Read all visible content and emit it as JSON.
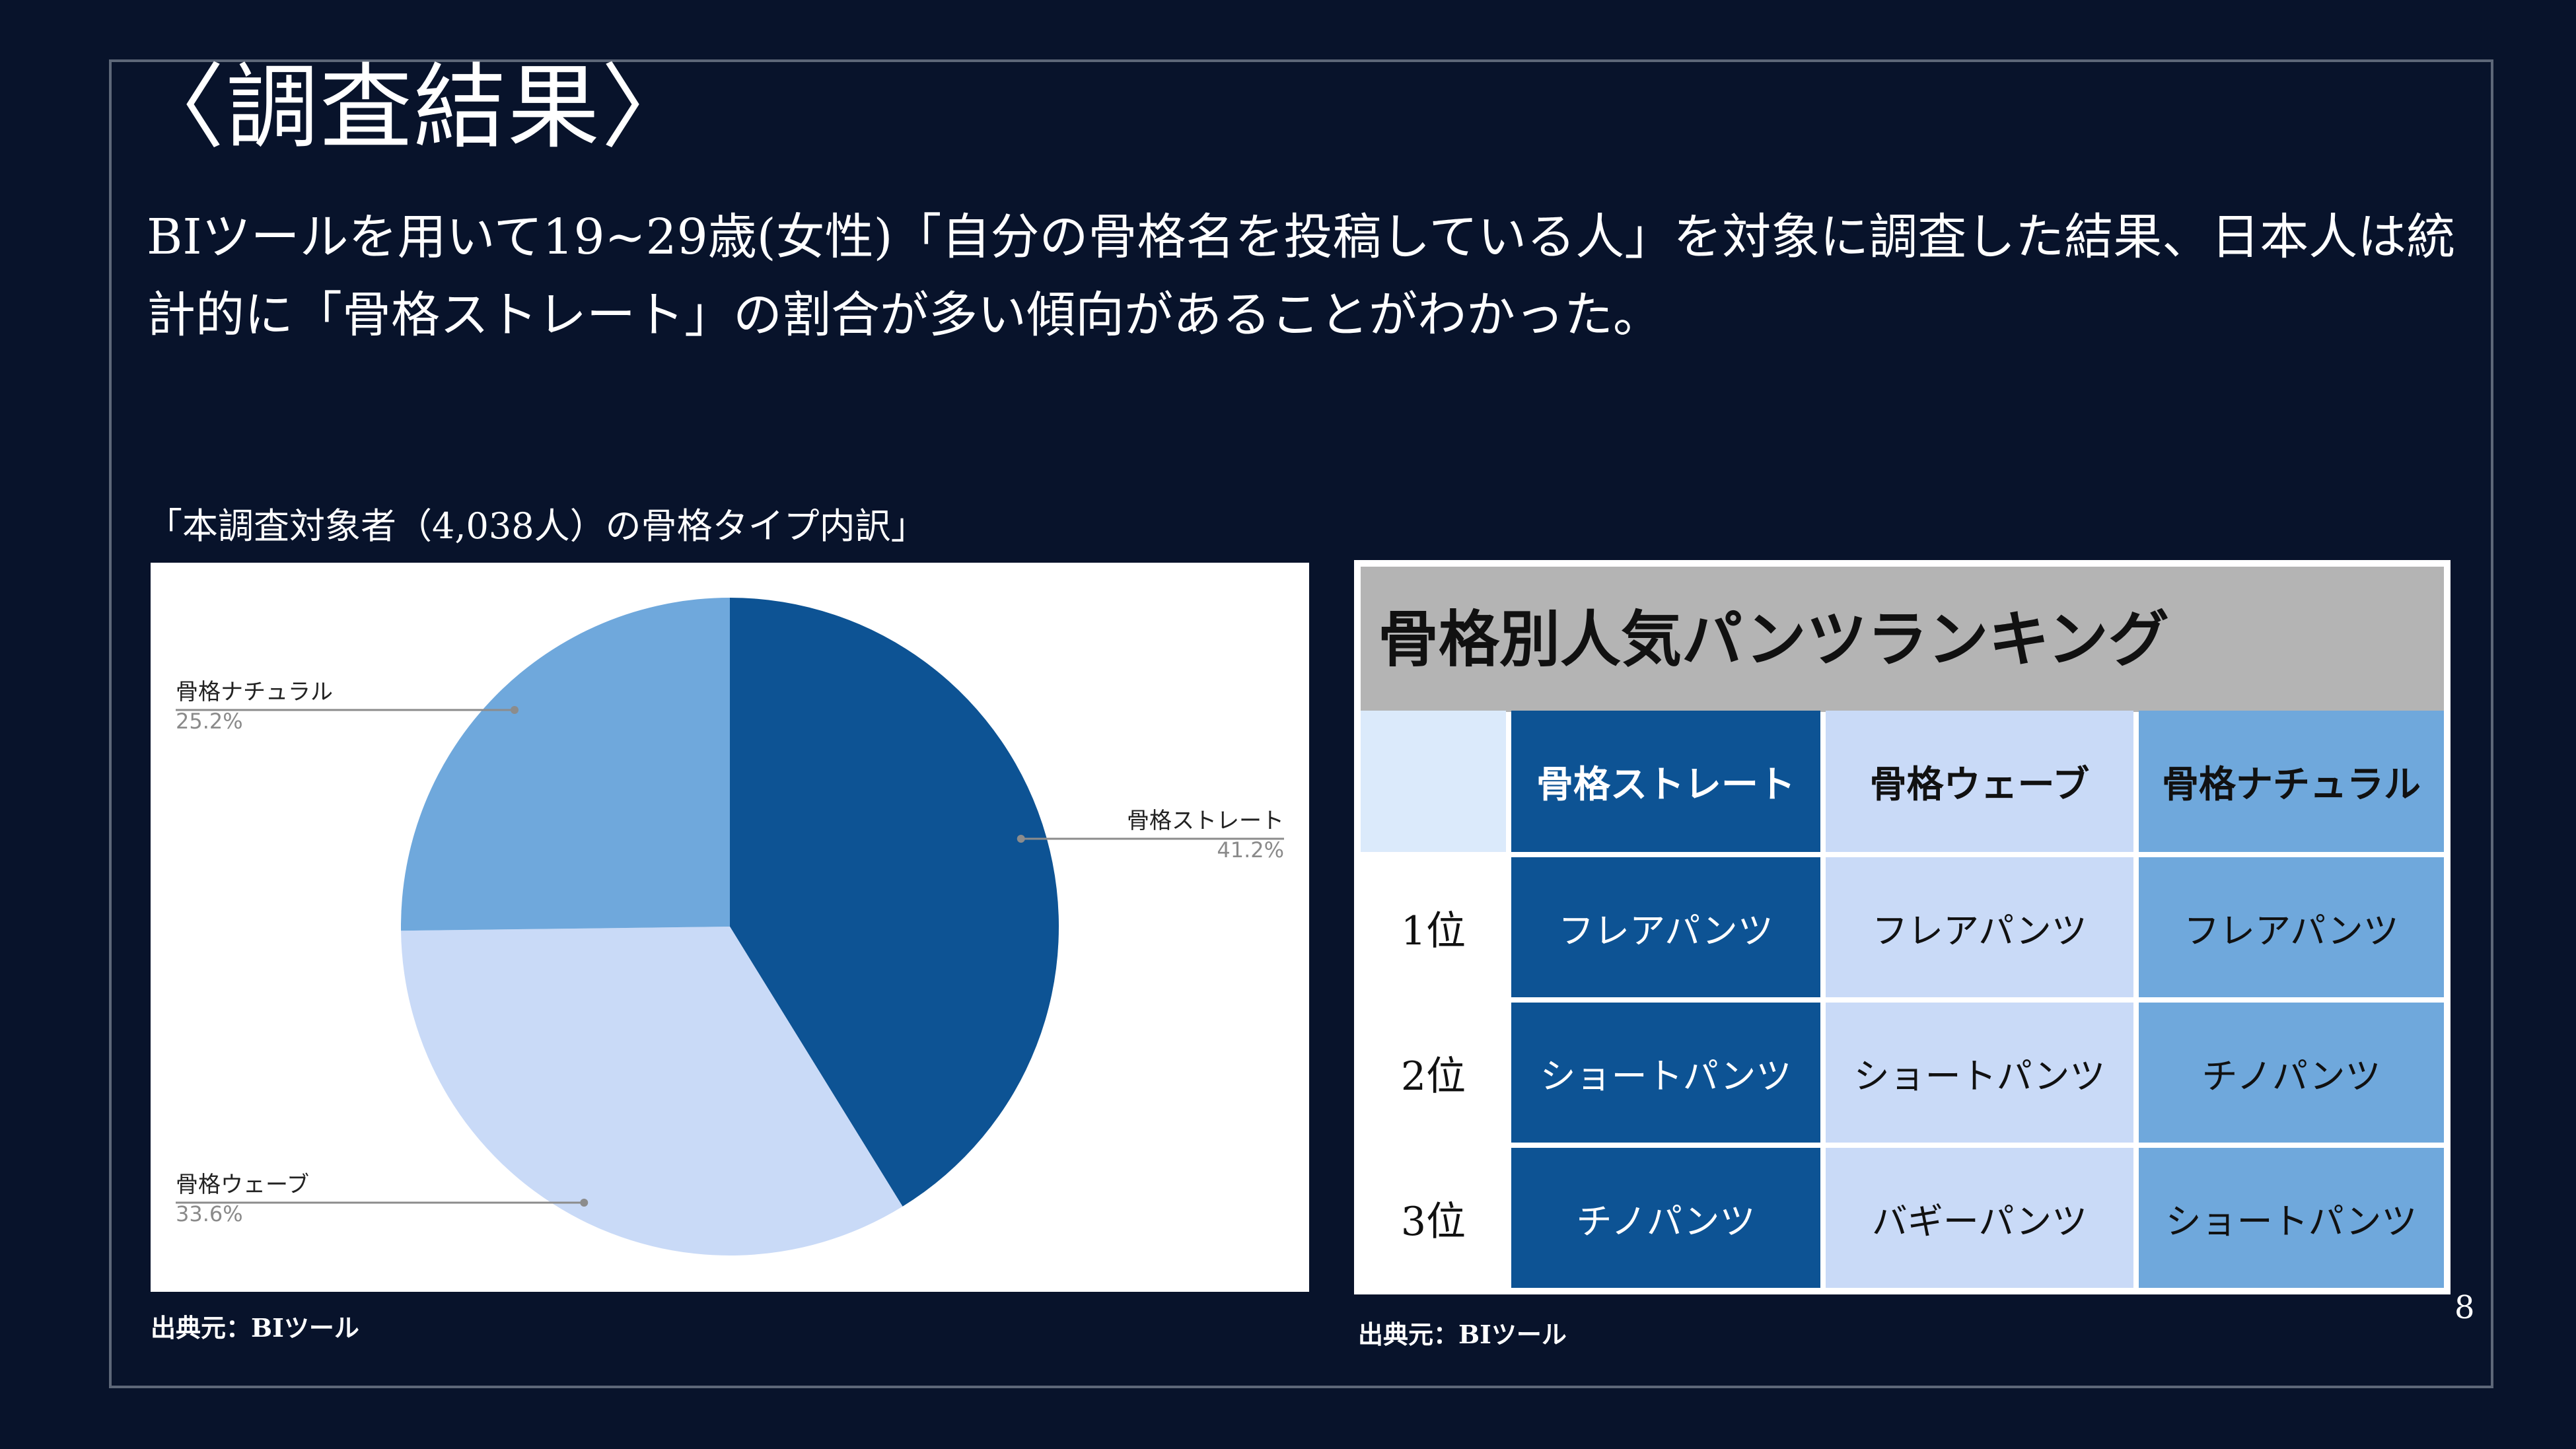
{
  "slide": {
    "title": "〈調査結果〉",
    "description": "BIツールを用いて19~29歳(女性)「自分の骨格名を投稿している人」を対象に調査した結果、日本人は統計的に「骨格ストレート」の割合が多い傾向があることがわかった。",
    "page_number": "8"
  },
  "chart_caption": "「本調査対象者（4,038人）の骨格タイプ内訳」",
  "chart_source": "出典元：BIツール",
  "chart_data": {
    "type": "pie",
    "title": "「本調査対象者（4,038人）の骨格タイプ内訳」",
    "slices": [
      {
        "label": "骨格ストレート",
        "value": 41.2,
        "pct_text": "41.2%",
        "color": "#0d5394"
      },
      {
        "label": "骨格ウェーブ",
        "value": 33.6,
        "pct_text": "33.6%",
        "color": "#c9daf7"
      },
      {
        "label": "骨格ナチュラル",
        "value": 25.2,
        "pct_text": "25.2%",
        "color": "#6fa8dc"
      }
    ]
  },
  "ranking_table": {
    "title": "骨格別人気パンツランキング",
    "columns": [
      "骨格ストレート",
      "骨格ウェーブ",
      "骨格ナチュラル"
    ],
    "rows": [
      {
        "rank": "1位",
        "cells": [
          "フレアパンツ",
          "フレアパンツ",
          "フレアパンツ"
        ]
      },
      {
        "rank": "2位",
        "cells": [
          "ショートパンツ",
          "ショートパンツ",
          "チノパンツ"
        ]
      },
      {
        "rank": "3位",
        "cells": [
          "チノパンツ",
          "バギーパンツ",
          "ショートパンツ"
        ]
      }
    ],
    "source": "出典元：BIツール"
  },
  "colors": {
    "background": "#08132b",
    "straight": "#0d5394",
    "wave": "#c9daf7",
    "natural": "#6fa8dc",
    "table_header": "#b4b4b4"
  }
}
